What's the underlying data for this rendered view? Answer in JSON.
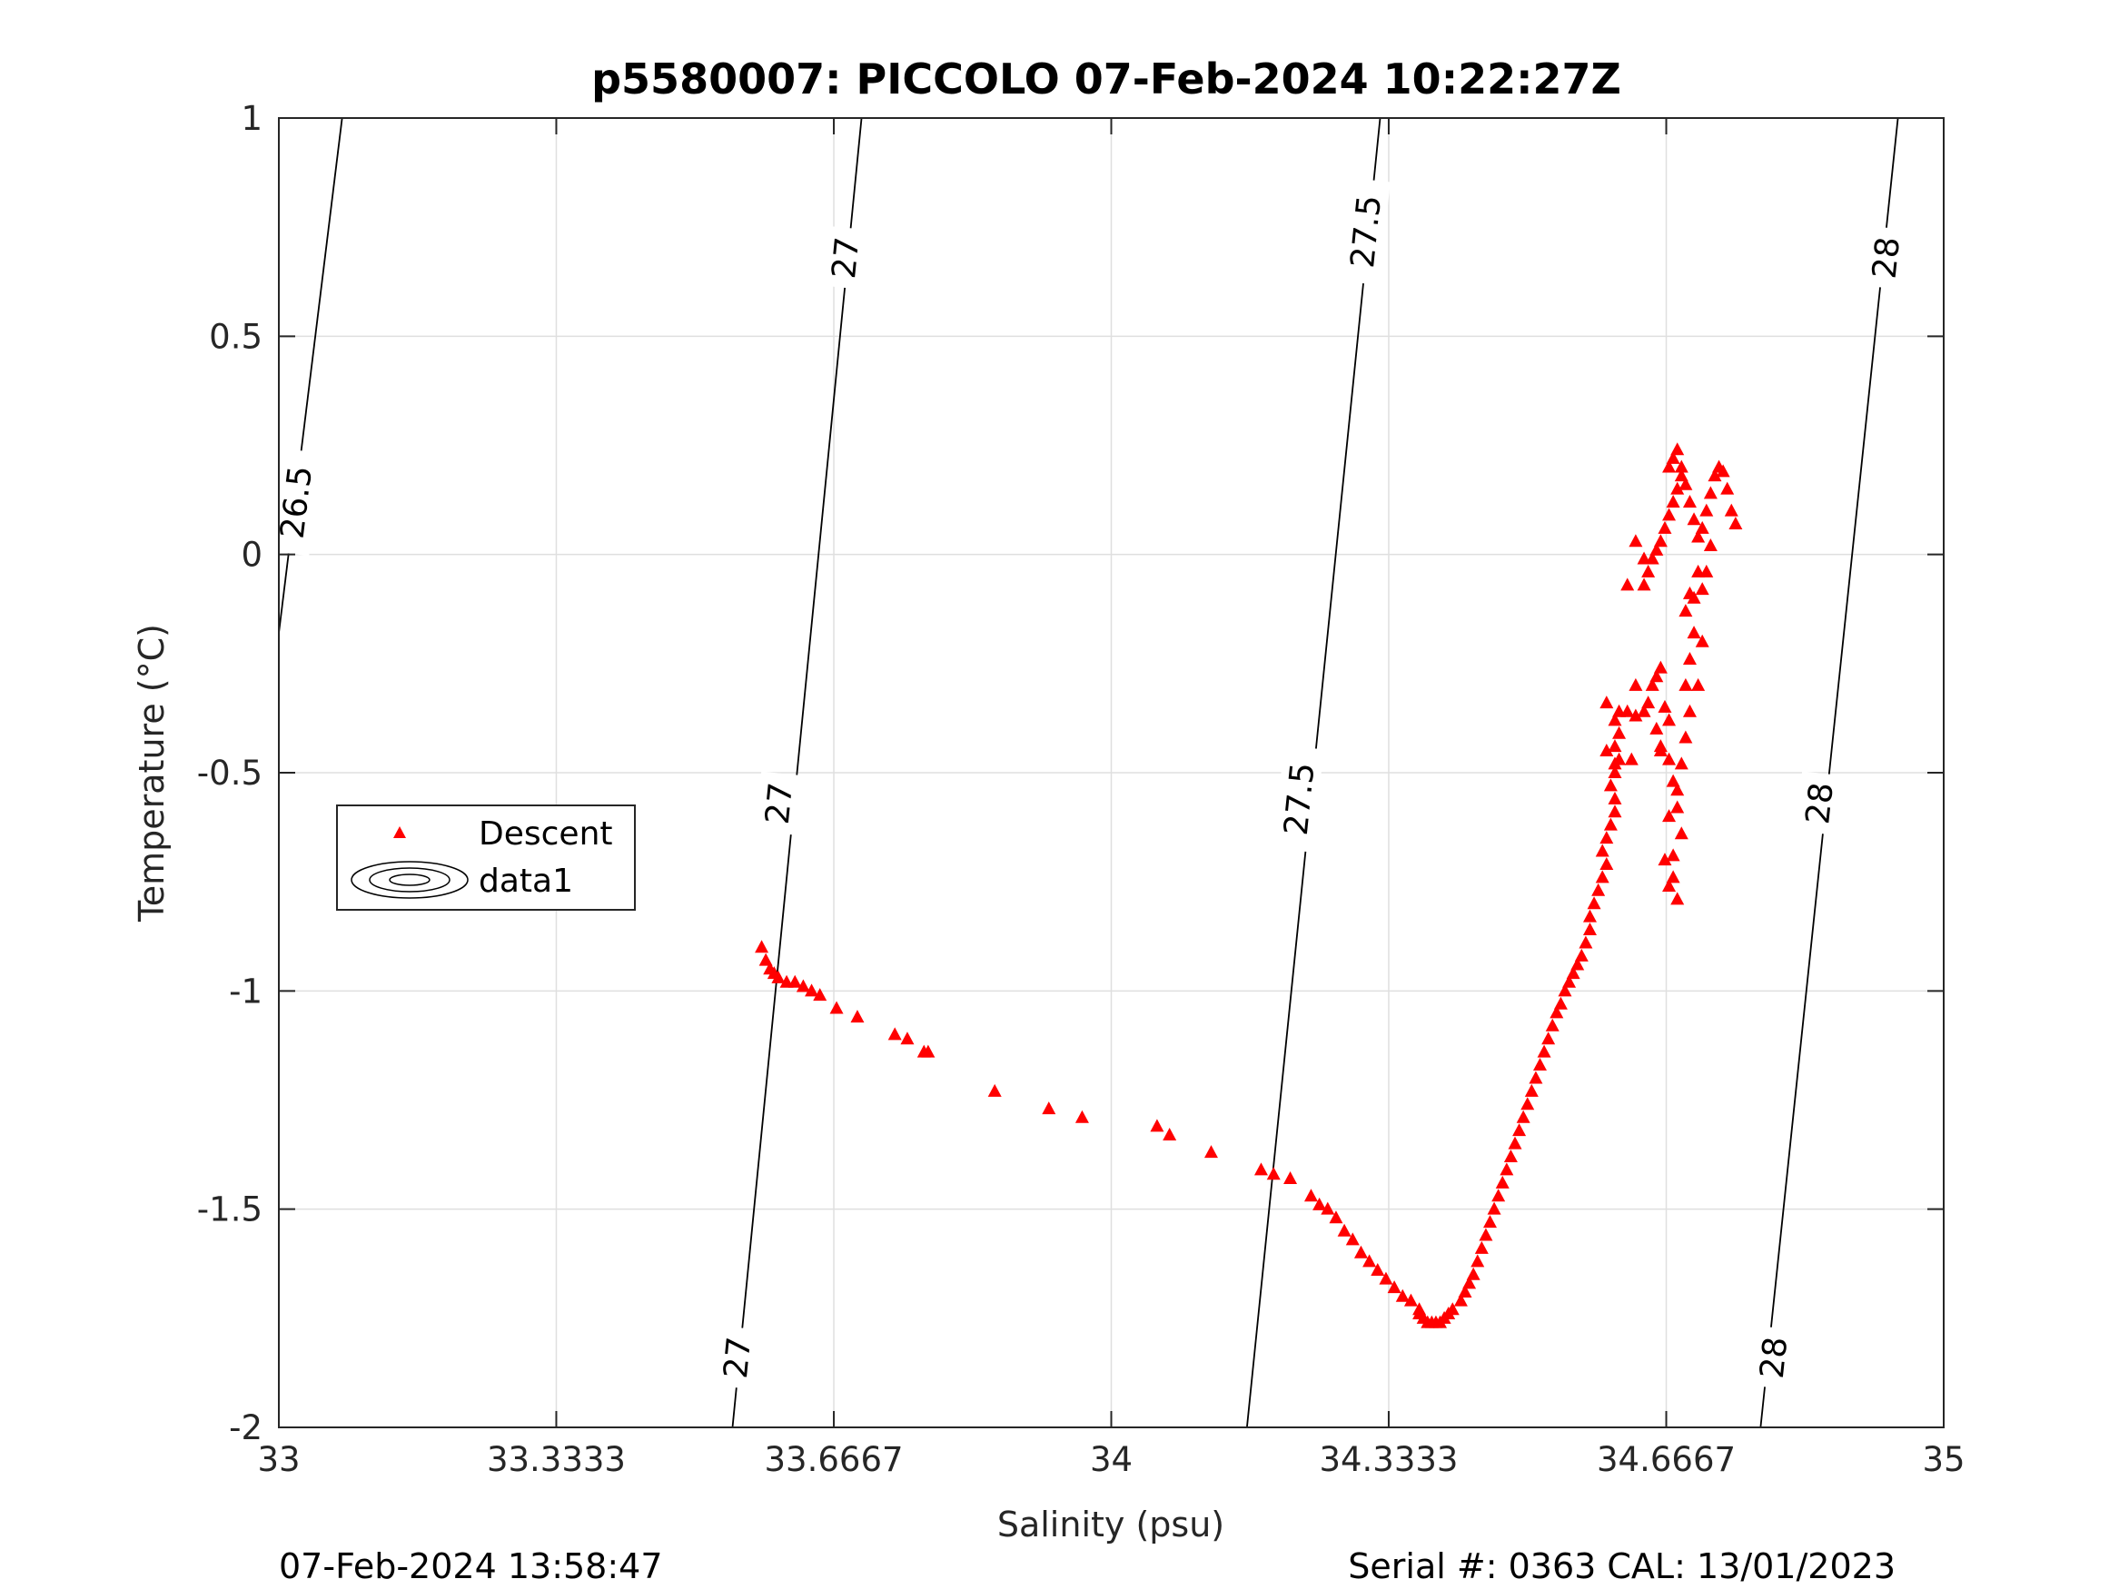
{
  "chart_data": {
    "type": "scatter",
    "title": "p5580007: PICCOLO 07-Feb-2024 10:22:27Z",
    "xlabel": "Salinity (psu)",
    "ylabel": "Temperature (°C)",
    "xlim": [
      33,
      35
    ],
    "ylim": [
      -2,
      1
    ],
    "xticks": [
      33,
      33.3333,
      33.6667,
      34,
      34.3333,
      34.6667,
      35
    ],
    "xtick_labels": [
      "33",
      "33.3333",
      "33.6667",
      "34",
      "34.3333",
      "34.6667",
      "35"
    ],
    "yticks": [
      -2,
      -1.5,
      -1,
      -0.5,
      0,
      0.5,
      1
    ],
    "ytick_labels": [
      "-2",
      "-1.5",
      "-1",
      "-0.5",
      "0",
      "0.5",
      "1"
    ],
    "grid": true,
    "legend": {
      "placement": "left",
      "entries": [
        "Descent",
        "data1"
      ]
    },
    "footer_left": "07-Feb-2024 13:58:47",
    "footer_right": "Serial #: 0363  CAL: 13/01/2023",
    "series": [
      {
        "name": "Descent",
        "marker": "triangle",
        "color": "#ff0000",
        "points": [
          [
            33.58,
            -0.9
          ],
          [
            33.585,
            -0.93
          ],
          [
            33.59,
            -0.95
          ],
          [
            33.595,
            -0.96
          ],
          [
            33.6,
            -0.97
          ],
          [
            33.61,
            -0.98
          ],
          [
            33.62,
            -0.98
          ],
          [
            33.63,
            -0.99
          ],
          [
            33.64,
            -1.0
          ],
          [
            33.65,
            -1.01
          ],
          [
            33.67,
            -1.04
          ],
          [
            33.695,
            -1.06
          ],
          [
            33.74,
            -1.1
          ],
          [
            33.755,
            -1.11
          ],
          [
            33.775,
            -1.14
          ],
          [
            33.78,
            -1.14
          ],
          [
            33.86,
            -1.23
          ],
          [
            33.925,
            -1.27
          ],
          [
            33.965,
            -1.29
          ],
          [
            34.055,
            -1.31
          ],
          [
            34.07,
            -1.33
          ],
          [
            34.12,
            -1.37
          ],
          [
            34.18,
            -1.41
          ],
          [
            34.195,
            -1.42
          ],
          [
            34.215,
            -1.43
          ],
          [
            34.24,
            -1.47
          ],
          [
            34.25,
            -1.49
          ],
          [
            34.26,
            -1.5
          ],
          [
            34.27,
            -1.52
          ],
          [
            34.28,
            -1.55
          ],
          [
            34.29,
            -1.57
          ],
          [
            34.3,
            -1.6
          ],
          [
            34.31,
            -1.62
          ],
          [
            34.32,
            -1.64
          ],
          [
            34.33,
            -1.66
          ],
          [
            34.34,
            -1.68
          ],
          [
            34.35,
            -1.7
          ],
          [
            34.36,
            -1.71
          ],
          [
            34.37,
            -1.73
          ],
          [
            34.37,
            -1.74
          ],
          [
            34.375,
            -1.75
          ],
          [
            34.38,
            -1.76
          ],
          [
            34.385,
            -1.76
          ],
          [
            34.39,
            -1.76
          ],
          [
            34.395,
            -1.76
          ],
          [
            34.4,
            -1.75
          ],
          [
            34.405,
            -1.74
          ],
          [
            34.41,
            -1.73
          ],
          [
            34.42,
            -1.71
          ],
          [
            34.425,
            -1.69
          ],
          [
            34.43,
            -1.67
          ],
          [
            34.435,
            -1.65
          ],
          [
            34.44,
            -1.62
          ],
          [
            34.445,
            -1.59
          ],
          [
            34.45,
            -1.56
          ],
          [
            34.455,
            -1.53
          ],
          [
            34.46,
            -1.5
          ],
          [
            34.465,
            -1.47
          ],
          [
            34.47,
            -1.44
          ],
          [
            34.475,
            -1.41
          ],
          [
            34.48,
            -1.38
          ],
          [
            34.485,
            -1.35
          ],
          [
            34.49,
            -1.32
          ],
          [
            34.495,
            -1.29
          ],
          [
            34.5,
            -1.26
          ],
          [
            34.505,
            -1.23
          ],
          [
            34.51,
            -1.2
          ],
          [
            34.515,
            -1.17
          ],
          [
            34.52,
            -1.14
          ],
          [
            34.525,
            -1.11
          ],
          [
            34.53,
            -1.08
          ],
          [
            34.535,
            -1.05
          ],
          [
            34.54,
            -1.03
          ],
          [
            34.545,
            -1.0
          ],
          [
            34.55,
            -0.98
          ],
          [
            34.555,
            -0.96
          ],
          [
            34.56,
            -0.94
          ],
          [
            34.565,
            -0.92
          ],
          [
            34.57,
            -0.89
          ],
          [
            34.575,
            -0.86
          ],
          [
            34.575,
            -0.83
          ],
          [
            34.58,
            -0.8
          ],
          [
            34.585,
            -0.77
          ],
          [
            34.59,
            -0.74
          ],
          [
            34.595,
            -0.71
          ],
          [
            34.59,
            -0.68
          ],
          [
            34.595,
            -0.65
          ],
          [
            34.6,
            -0.62
          ],
          [
            34.605,
            -0.59
          ],
          [
            34.605,
            -0.56
          ],
          [
            34.6,
            -0.53
          ],
          [
            34.605,
            -0.5
          ],
          [
            34.61,
            -0.47
          ],
          [
            34.605,
            -0.44
          ],
          [
            34.61,
            -0.41
          ],
          [
            34.605,
            -0.38
          ],
          [
            34.61,
            -0.36
          ],
          [
            34.62,
            -0.36
          ],
          [
            34.63,
            -0.37
          ],
          [
            34.64,
            -0.36
          ],
          [
            34.645,
            -0.34
          ],
          [
            34.65,
            -0.3
          ],
          [
            34.655,
            -0.28
          ],
          [
            34.66,
            -0.26
          ],
          [
            34.665,
            -0.35
          ],
          [
            34.655,
            -0.4
          ],
          [
            34.66,
            -0.44
          ],
          [
            34.67,
            -0.47
          ],
          [
            34.675,
            -0.52
          ],
          [
            34.68,
            -0.58
          ],
          [
            34.685,
            -0.64
          ],
          [
            34.675,
            -0.69
          ],
          [
            34.675,
            -0.74
          ],
          [
            34.68,
            -0.79
          ],
          [
            34.67,
            -0.76
          ],
          [
            34.665,
            -0.7
          ],
          [
            34.67,
            -0.6
          ],
          [
            34.68,
            -0.54
          ],
          [
            34.685,
            -0.48
          ],
          [
            34.69,
            -0.42
          ],
          [
            34.695,
            -0.36
          ],
          [
            34.69,
            -0.3
          ],
          [
            34.695,
            -0.24
          ],
          [
            34.7,
            -0.18
          ],
          [
            34.69,
            -0.13
          ],
          [
            34.695,
            -0.09
          ],
          [
            34.705,
            -0.04
          ],
          [
            34.7,
            -0.1
          ],
          [
            34.71,
            -0.2
          ],
          [
            34.705,
            -0.3
          ],
          [
            34.645,
            -0.04
          ],
          [
            34.64,
            -0.07
          ],
          [
            34.65,
            -0.01
          ],
          [
            34.655,
            0.01
          ],
          [
            34.66,
            0.03
          ],
          [
            34.665,
            0.06
          ],
          [
            34.67,
            0.09
          ],
          [
            34.675,
            0.12
          ],
          [
            34.68,
            0.15
          ],
          [
            34.685,
            0.18
          ],
          [
            34.67,
            0.2
          ],
          [
            34.675,
            0.22
          ],
          [
            34.68,
            0.24
          ],
          [
            34.685,
            0.2
          ],
          [
            34.69,
            0.16
          ],
          [
            34.695,
            0.12
          ],
          [
            34.7,
            0.08
          ],
          [
            34.705,
            0.04
          ],
          [
            34.71,
            0.06
          ],
          [
            34.715,
            0.1
          ],
          [
            34.72,
            0.14
          ],
          [
            34.725,
            0.18
          ],
          [
            34.73,
            0.2
          ],
          [
            34.735,
            0.19
          ],
          [
            34.74,
            0.15
          ],
          [
            34.745,
            0.1
          ],
          [
            34.75,
            0.07
          ],
          [
            34.72,
            0.02
          ],
          [
            34.715,
            -0.04
          ],
          [
            34.71,
            -0.08
          ],
          [
            34.63,
            0.03
          ],
          [
            34.64,
            -0.01
          ],
          [
            34.62,
            -0.07
          ],
          [
            34.595,
            -0.34
          ],
          [
            34.595,
            -0.45
          ],
          [
            34.605,
            -0.48
          ],
          [
            34.63,
            -0.3
          ],
          [
            34.66,
            -0.45
          ],
          [
            34.67,
            -0.38
          ],
          [
            34.625,
            -0.47
          ]
        ]
      },
      {
        "name": "data1",
        "type": "contour",
        "isopycnals": [
          {
            "level": "26.5",
            "x_top": 33.076,
            "x_bottom": 33.0,
            "y_bottom": -0.18
          },
          {
            "level": "27",
            "x_top": 33.7,
            "x_bottom": 33.545
          },
          {
            "level": "27.5",
            "x_top": 34.323,
            "x_bottom": 34.163
          },
          {
            "level": "28",
            "x_top": 34.945,
            "x_bottom": 34.78
          }
        ],
        "labels": [
          {
            "text": "26.5",
            "s": 33.02,
            "t": 0.12
          },
          {
            "text": "27",
            "s": 33.68,
            "t": 0.68
          },
          {
            "text": "27",
            "s": 33.6,
            "t": -0.57
          },
          {
            "text": "27",
            "s": 33.55,
            "t": -1.84
          },
          {
            "text": "27.5",
            "s": 34.305,
            "t": 0.74
          },
          {
            "text": "27.5",
            "s": 34.225,
            "t": -0.56
          },
          {
            "text": "28",
            "s": 34.93,
            "t": 0.68
          },
          {
            "text": "28",
            "s": 34.85,
            "t": -0.57
          },
          {
            "text": "28",
            "s": 34.795,
            "t": -1.84
          }
        ]
      }
    ]
  }
}
